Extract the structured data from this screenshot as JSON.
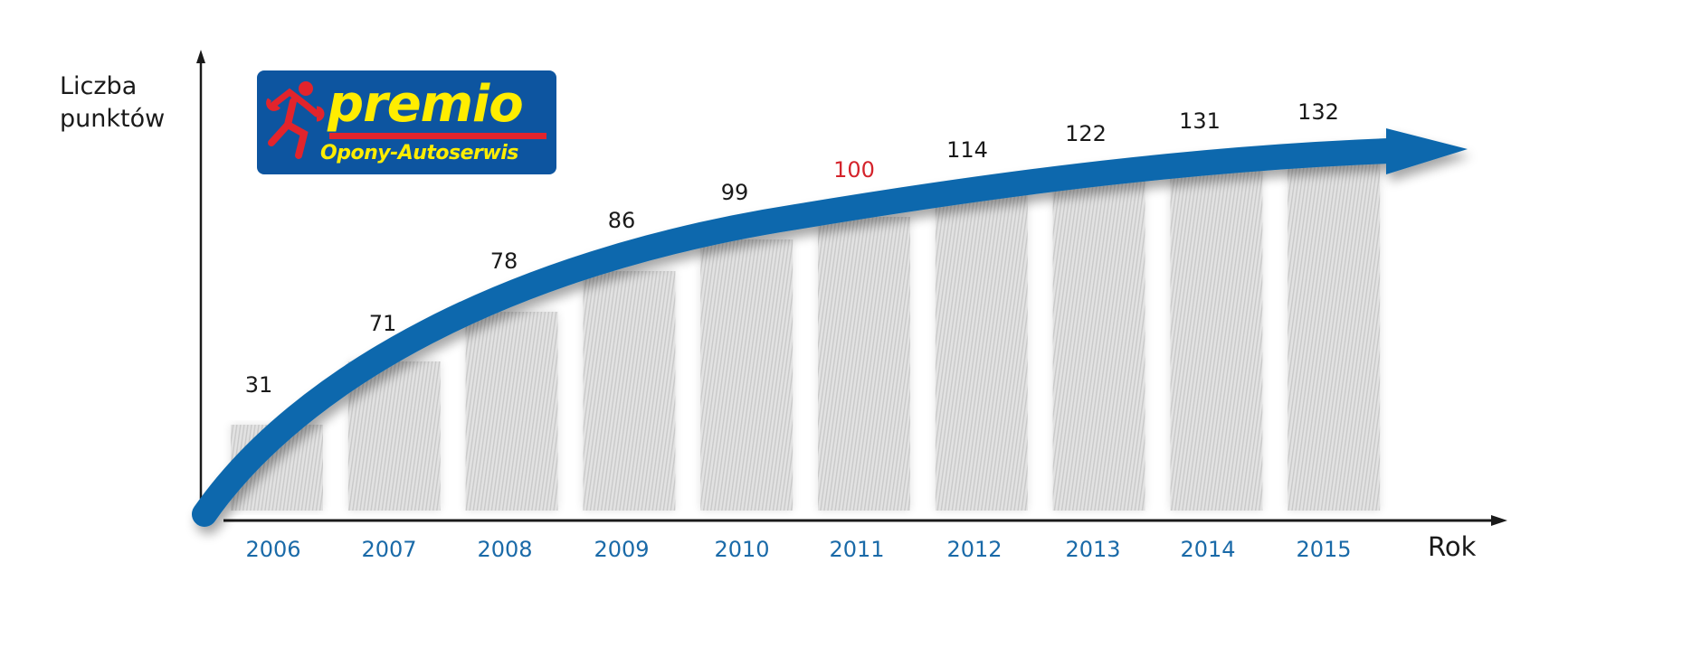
{
  "logo": {
    "brand": "premio",
    "tagline": "Opony-Autoserwis",
    "colors": {
      "background": "#0d55a0",
      "text": "#ffed00",
      "accent": "#e2242c"
    }
  },
  "axes": {
    "y_label_line1": "Liczba",
    "y_label_line2": "punktów",
    "x_label": "Rok"
  },
  "colors": {
    "arrow": "#0a68ad",
    "year_label": "#1a6aa8",
    "value_label": "#1a1a1a",
    "highlight_value": "#d4232b",
    "bar": "#dadada"
  },
  "chart_data": {
    "type": "bar",
    "title": "",
    "xlabel": "Rok",
    "ylabel": "Liczba punktów",
    "categories": [
      "2006",
      "2007",
      "2008",
      "2009",
      "2010",
      "2011",
      "2012",
      "2013",
      "2014",
      "2015"
    ],
    "values": [
      31,
      71,
      78,
      86,
      99,
      100,
      114,
      122,
      131,
      132
    ],
    "highlighted": "2011",
    "overlay": "curved growth arrow",
    "grid": false,
    "ylim": [
      0,
      140
    ]
  }
}
